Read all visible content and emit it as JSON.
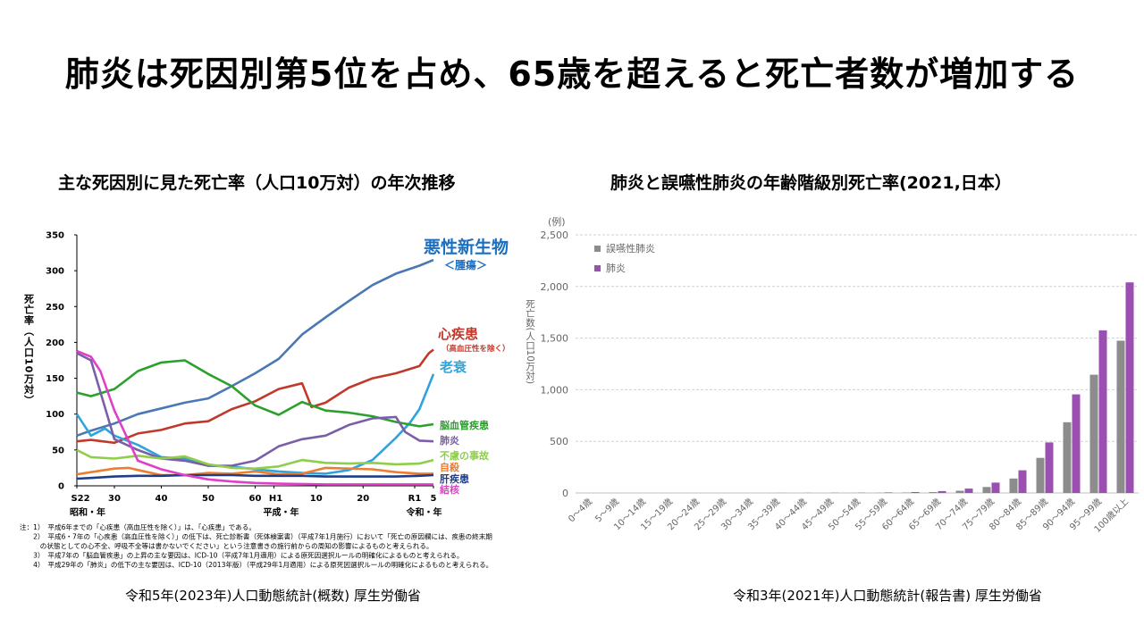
{
  "page_title": "肺炎は死因別第5位を占め、65歳を超えると死亡者数が増加する",
  "left": {
    "title": "主な死因別に見た死亡率（人口10万対）の年次推移",
    "source": "令和5年(2023年)人口動態統計(概数) 厚生労働省"
  },
  "right": {
    "title": "肺炎と誤嚥性肺炎の年齢階級別死亡率(2021,日本）",
    "source": "令和3年(2021年)人口動態統計(報告書) 厚生労働省"
  },
  "chart_data": [
    {
      "type": "line",
      "title": "主な死因別に見た死亡率（人口10万対）の年次推移",
      "ylabel": "死亡率（人口10万対）",
      "ylim": [
        0,
        350
      ],
      "yticks": [
        0,
        50,
        100,
        150,
        200,
        250,
        300,
        350
      ],
      "xlim": [
        1947,
        2023
      ],
      "xticks": [
        {
          "year": 1947,
          "label": "S22"
        },
        {
          "year": 1955,
          "label": "30"
        },
        {
          "year": 1965,
          "label": "40"
        },
        {
          "year": 1975,
          "label": "50"
        },
        {
          "year": 1985,
          "label": "60"
        },
        {
          "year": 1989,
          "label": "H1"
        },
        {
          "year": 1998,
          "label": "10"
        },
        {
          "year": 2008,
          "label": "20"
        },
        {
          "year": 2019,
          "label": "R1"
        },
        {
          "year": 2023,
          "label": "5"
        }
      ],
      "era_labels": [
        "昭和・年",
        "平成・年",
        "令和・年"
      ],
      "grid": false,
      "series": [
        {
          "name": "悪性新生物",
          "sub": "＜腫瘍＞",
          "color": "#4a78b5",
          "label_color": "#1a6fc0",
          "x": [
            1947,
            1950,
            1955,
            1960,
            1965,
            1970,
            1975,
            1980,
            1985,
            1990,
            1995,
            2000,
            2005,
            2010,
            2015,
            2020,
            2023
          ],
          "y": [
            70,
            77,
            87,
            100,
            108,
            116,
            122,
            139,
            157,
            177,
            211,
            235,
            258,
            280,
            296,
            307,
            315
          ]
        },
        {
          "name": "心疾患",
          "sub": "（高血圧性を除く）",
          "color": "#c0392b",
          "label_color": "#c0392b",
          "x": [
            1947,
            1950,
            1955,
            1960,
            1965,
            1970,
            1975,
            1980,
            1985,
            1990,
            1995,
            1997,
            2000,
            2005,
            2010,
            2015,
            2020,
            2022,
            2023
          ],
          "y": [
            62,
            64,
            60,
            73,
            78,
            87,
            90,
            107,
            118,
            135,
            143,
            110,
            116,
            137,
            150,
            157,
            167,
            185,
            190
          ]
        },
        {
          "name": "老衰",
          "sub": "",
          "color": "#2ea3dc",
          "label_color": "#2ea3dc",
          "x": [
            1947,
            1950,
            1953,
            1955,
            1960,
            1965,
            1970,
            1975,
            1980,
            1985,
            1990,
            1995,
            2000,
            2005,
            2010,
            2015,
            2018,
            2020,
            2023
          ],
          "y": [
            100,
            70,
            80,
            70,
            57,
            40,
            38,
            28,
            27,
            23,
            20,
            18,
            17,
            22,
            36,
            67,
            88,
            107,
            156
          ]
        },
        {
          "name": "脳血管疾患",
          "sub": "",
          "color": "#2ca02c",
          "label_color": "#2ca02c",
          "x": [
            1947,
            1950,
            1955,
            1958,
            1960,
            1965,
            1970,
            1975,
            1980,
            1985,
            1990,
            1995,
            2000,
            2005,
            2010,
            2015,
            2020,
            2023
          ],
          "y": [
            130,
            125,
            135,
            150,
            160,
            172,
            175,
            156,
            139,
            112,
            99,
            117,
            105,
            102,
            97,
            89,
            83,
            86
          ]
        },
        {
          "name": "肺炎",
          "sub": "",
          "color": "#7a5ea8",
          "label_color": "#7a5ea8",
          "x": [
            1947,
            1950,
            1955,
            1960,
            1965,
            1970,
            1975,
            1980,
            1985,
            1990,
            1995,
            2000,
            2005,
            2010,
            2015,
            2017,
            2020,
            2023
          ],
          "y": [
            185,
            175,
            65,
            50,
            38,
            35,
            28,
            28,
            35,
            55,
            65,
            70,
            85,
            94,
            96,
            75,
            63,
            62
          ]
        },
        {
          "name": "不慮の事故",
          "sub": "",
          "color": "#8fce4a",
          "label_color": "#8fce4a",
          "x": [
            1947,
            1950,
            1955,
            1960,
            1965,
            1970,
            1975,
            1980,
            1985,
            1990,
            1995,
            2000,
            2005,
            2010,
            2015,
            2020,
            2023
          ],
          "y": [
            50,
            40,
            38,
            42,
            38,
            41,
            30,
            25,
            24,
            27,
            36,
            32,
            31,
            32,
            30,
            31,
            36
          ]
        },
        {
          "name": "自殺",
          "sub": "",
          "color": "#ed7d31",
          "label_color": "#ed7d31",
          "x": [
            1947,
            1950,
            1955,
            1958,
            1960,
            1965,
            1970,
            1975,
            1980,
            1985,
            1990,
            1995,
            2000,
            2005,
            2010,
            2015,
            2020,
            2023
          ],
          "y": [
            16,
            19,
            24,
            25,
            22,
            15,
            15,
            18,
            17,
            20,
            16,
            17,
            25,
            24,
            23,
            19,
            17,
            17
          ]
        },
        {
          "name": "肝疾患",
          "sub": "",
          "color": "#1f3e8a",
          "label_color": "#1f3e8a",
          "x": [
            1947,
            1950,
            1955,
            1960,
            1965,
            1970,
            1975,
            1980,
            1985,
            1990,
            1995,
            2000,
            2005,
            2010,
            2015,
            2020,
            2023
          ],
          "y": [
            10,
            11,
            13,
            14,
            14,
            15,
            15,
            15,
            14,
            14,
            14,
            13,
            13,
            13,
            13,
            14,
            15
          ]
        },
        {
          "name": "結核",
          "sub": "",
          "color": "#e040c8",
          "label_color": "#e040c8",
          "x": [
            1947,
            1950,
            1952,
            1955,
            1960,
            1965,
            1970,
            1975,
            1980,
            1985,
            1990,
            2000,
            2010,
            2023
          ],
          "y": [
            188,
            180,
            160,
            105,
            35,
            23,
            15,
            9,
            6,
            4,
            3,
            2,
            2,
            2
          ]
        }
      ],
      "notes": [
        "注：1）　平成6年までの「心疾患（高血圧性を除く）」は、「心疾患」である。",
        "　　2）　平成6・7年の「心疾患（高血圧性を除く）」の低下は、死亡診断書（死体検案書）（平成7年1月施行）において「死亡の原因欄には、疾患の終末期",
        "　　　の状態としての心不全、呼吸不全等は書かないでください」という注意書きの施行前からの周知の影響によるものと考えられる。",
        "　　3）　平成7年の「脳血管疾患」の上昇の主な要因は、ICD-10（平成7年1月適用）による原死因選択ルールの明確化によるものと考えられる。",
        "　　4）　平成29年の「肺炎」の低下の主な要因は、ICD-10（2013年版）（平成29年1月適用）による原死因選択ルールの明確化によるものと考えられる。"
      ]
    },
    {
      "type": "bar",
      "title": "肺炎と誤嚥性肺炎の年齢階級別死亡率(2021,日本）",
      "unit_label": "(例)",
      "ylabel": "死亡数(人口10万対)",
      "ylim": [
        0,
        2500
      ],
      "yticks": [
        "0",
        "500",
        "1,000",
        "1,500",
        "2,000",
        "2,500"
      ],
      "grid": true,
      "legend_position": "top-left",
      "categories": [
        "0～4歳",
        "5～9歳",
        "10～14歳",
        "15～19歳",
        "20～24歳",
        "25～29歳",
        "30～34歳",
        "35～39歳",
        "40～44歳",
        "45～49歳",
        "50～54歳",
        "55～59歳",
        "60～64歳",
        "65～69歳",
        "70～74歳",
        "75～79歳",
        "80～84歳",
        "85～89歳",
        "90～94歳",
        "95～99歳",
        "100歳以上"
      ],
      "series": [
        {
          "name": "誤嚥性肺炎",
          "color": "#8c8c8c",
          "values": [
            0,
            0,
            0,
            0,
            0,
            0,
            0,
            0,
            0,
            0,
            1,
            2,
            4,
            9,
            22,
            58,
            140,
            340,
            685,
            1145,
            1475
          ]
        },
        {
          "name": "肺炎",
          "color": "#9b4fb0",
          "values": [
            0,
            0,
            0,
            0,
            0,
            0,
            0,
            1,
            1,
            2,
            3,
            5,
            9,
            18,
            42,
            100,
            220,
            490,
            955,
            1575,
            2040
          ]
        }
      ]
    }
  ]
}
